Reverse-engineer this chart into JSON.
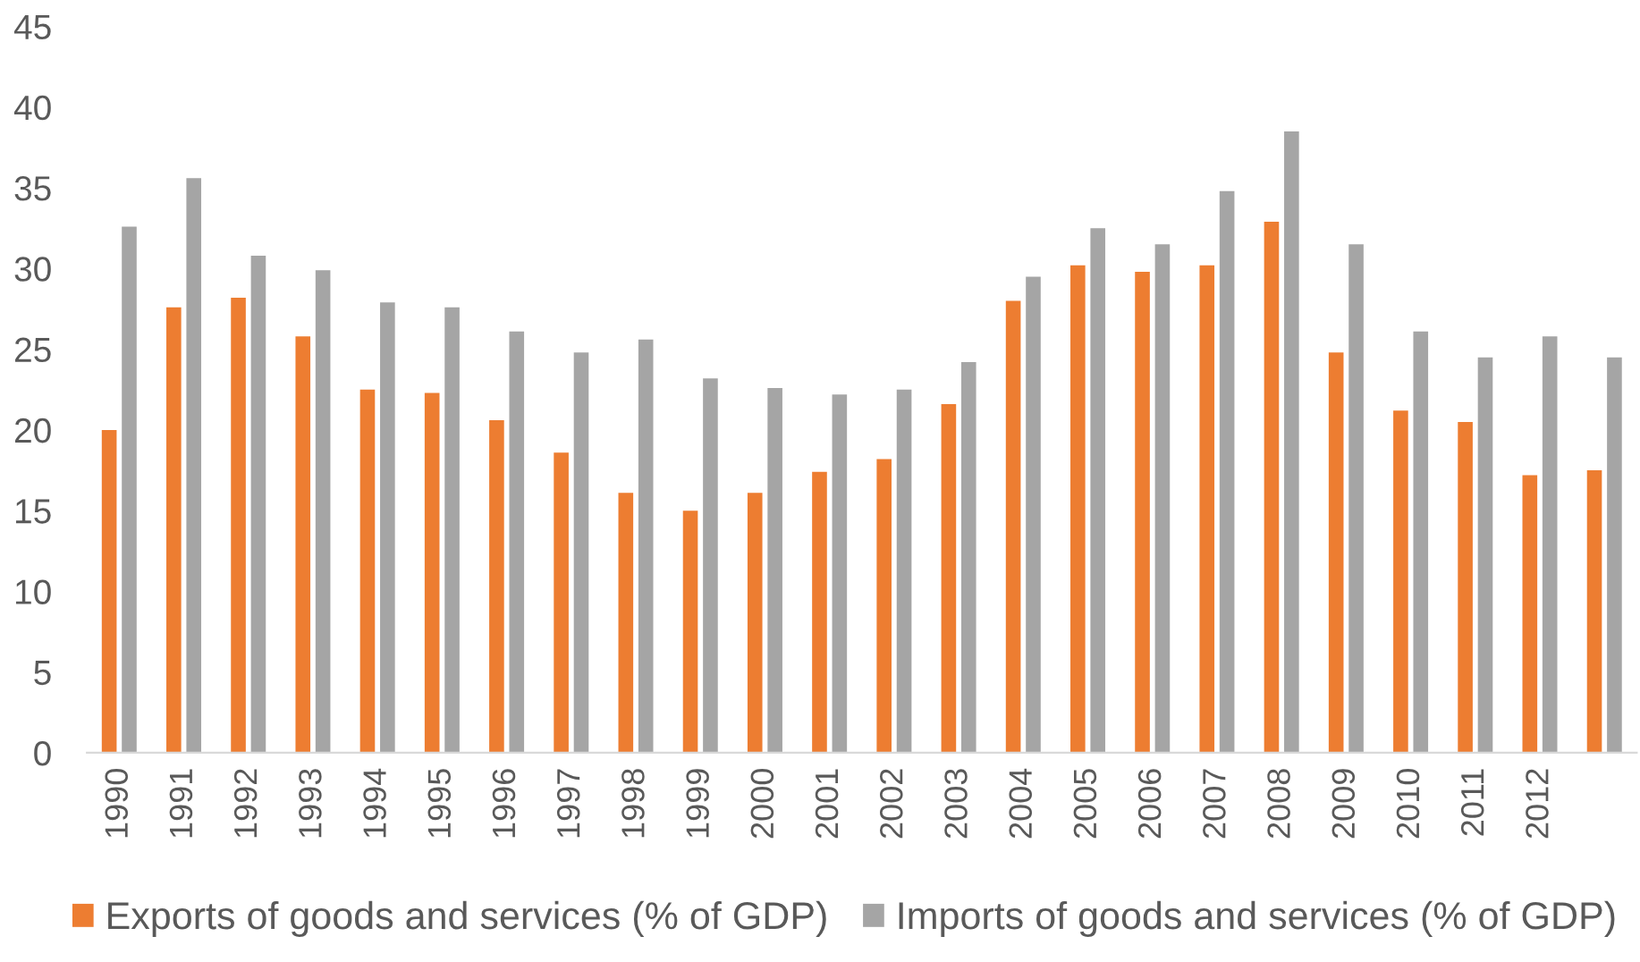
{
  "chart_data": {
    "type": "bar",
    "categories": [
      "1990",
      "1991",
      "1992",
      "1993",
      "1994",
      "1995",
      "1996",
      "1997",
      "1998",
      "1999",
      "2000",
      "2001",
      "2002",
      "2003",
      "2004",
      "2005",
      "2006",
      "2007",
      "2008",
      "2009",
      "2010",
      "2011",
      "2012",
      null
    ],
    "series": [
      {
        "name": "Exports of goods and services (% of GDP)",
        "color": "#ed7d31",
        "values": [
          20.0,
          27.6,
          28.2,
          25.8,
          22.5,
          22.3,
          20.6,
          18.6,
          16.1,
          15.0,
          16.1,
          17.4,
          18.2,
          21.6,
          28.0,
          30.2,
          29.8,
          30.2,
          32.9,
          24.8,
          21.2,
          20.5,
          17.2,
          17.5
        ]
      },
      {
        "name": "Imports of goods and services (% of GDP)",
        "color": "#a5a5a5",
        "values": [
          32.6,
          35.6,
          30.8,
          29.9,
          27.9,
          27.6,
          26.1,
          24.8,
          25.6,
          23.2,
          22.6,
          22.2,
          22.5,
          24.2,
          29.5,
          32.5,
          31.5,
          34.8,
          38.5,
          31.5,
          26.1,
          24.5,
          25.8,
          24.5
        ]
      }
    ],
    "ylim": [
      0,
      45
    ],
    "yticks": [
      0,
      5,
      10,
      15,
      20,
      25,
      30,
      35,
      40,
      45
    ],
    "legend": "bottom"
  }
}
